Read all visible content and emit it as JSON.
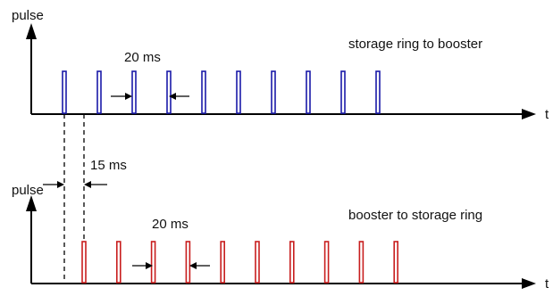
{
  "top_panel": {
    "y_axis_label": "pulse",
    "x_axis_label": "t",
    "caption": "storage ring to booster",
    "spacing_label": "20 ms",
    "pulse_count": 10,
    "pulse_color": "#1a1aa8"
  },
  "bottom_panel": {
    "y_axis_label": "pulse",
    "x_axis_label": "t",
    "caption": "booster to storage ring",
    "spacing_label": "20 ms",
    "pulse_count": 10,
    "pulse_color": "#c81e1e"
  },
  "offset_label": "15 ms"
}
